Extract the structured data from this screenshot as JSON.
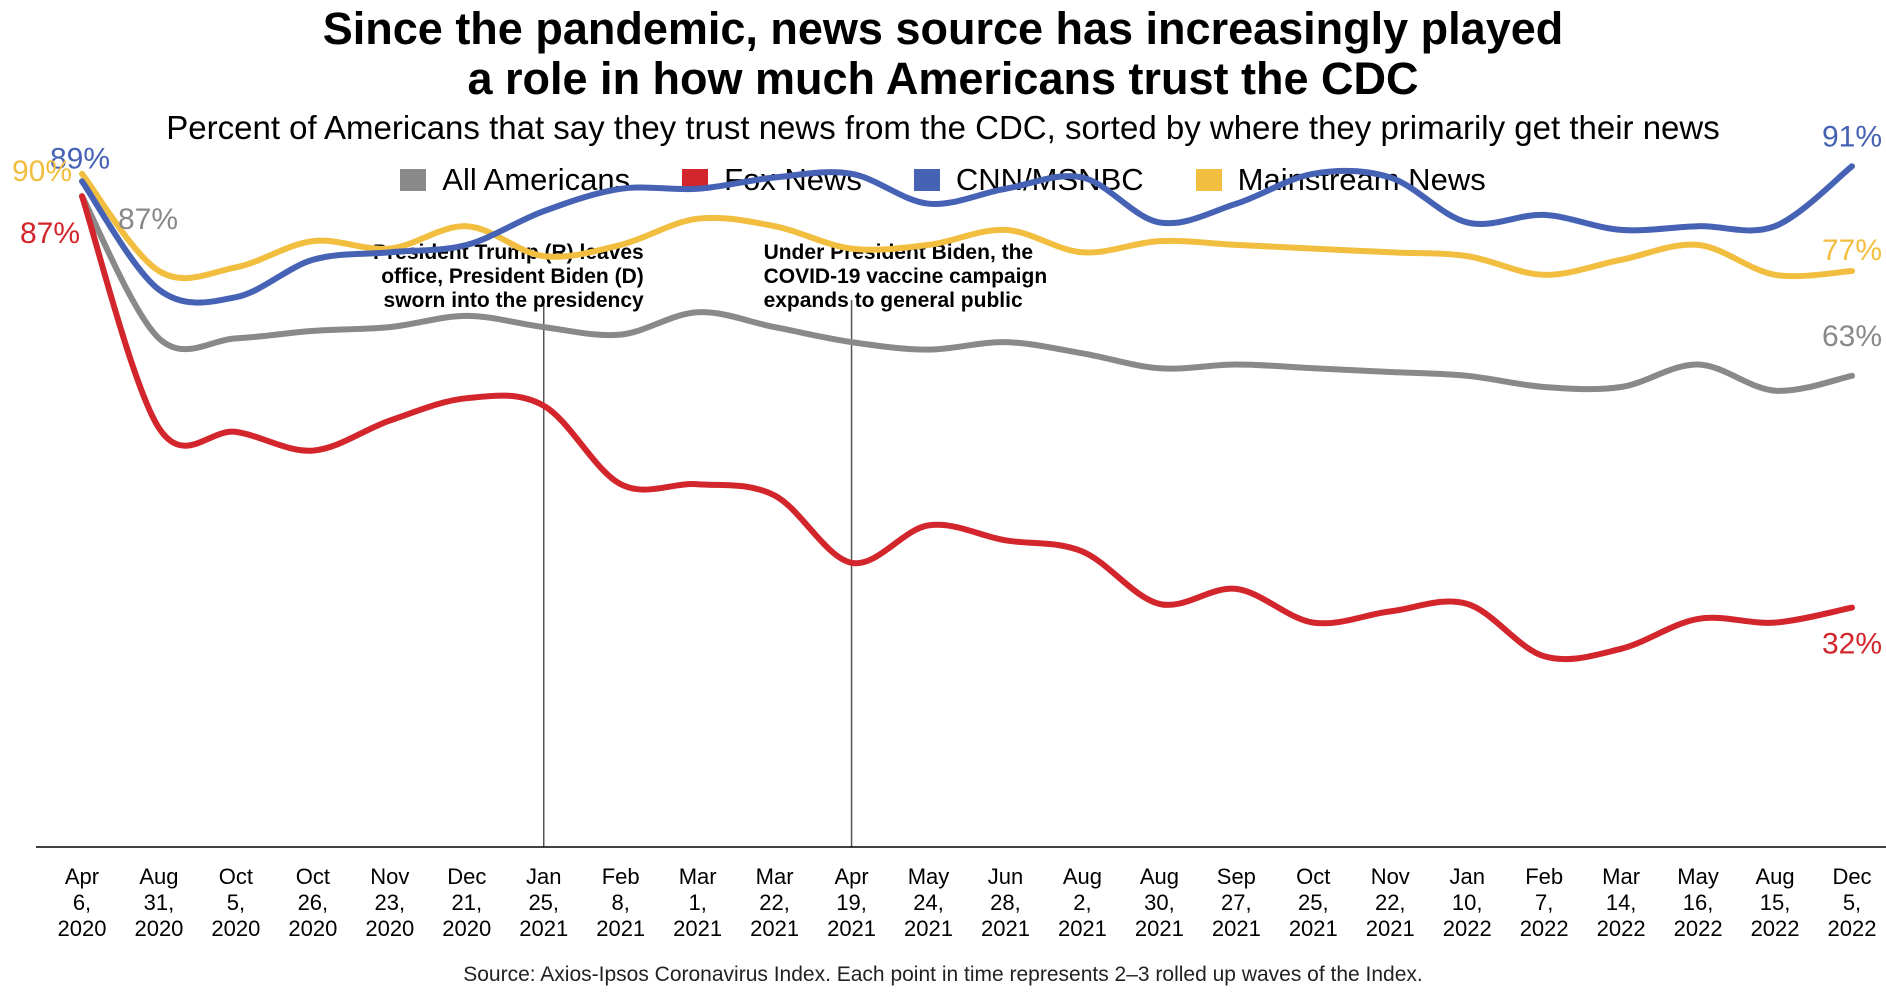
{
  "title_line1": "Since the pandemic, news source has increasingly played",
  "title_line2": "a role in how much Americans trust the CDC",
  "subtitle": "Percent of Americans that say they trust news from the CDC, sorted by where they primarily get their news",
  "source": "Source: Axios-Ipsos Coronavirus Index. Each point in time represents 2–3 rolled up waves of the Index.",
  "legend": [
    {
      "label": "All Americans",
      "color": "#898989"
    },
    {
      "label": "Fox News",
      "color": "#d3262c"
    },
    {
      "label": "CNN/MSNBC",
      "color": "#4662b5"
    },
    {
      "label": "Mainstream News",
      "color": "#f2be40"
    }
  ],
  "annotations": [
    {
      "at_index": 6,
      "text": [
        "President Trump (R) leaves",
        "office, President Biden (D)",
        "sworn into the presidency"
      ],
      "align": "right"
    },
    {
      "at_index": 10,
      "text": [
        "Under President Biden, the",
        "COVID-19 vaccine campaign",
        "expands to general public"
      ],
      "align": "left"
    }
  ],
  "chart_data": {
    "type": "line",
    "title": "Since the pandemic, news source has increasingly played a role in how much Americans trust the CDC",
    "subtitle": "Percent of Americans that say they trust news from the CDC, sorted by where they primarily get their news",
    "xlabel": "",
    "ylabel": "",
    "ylim": [
      0,
      100
    ],
    "grid": false,
    "legend_position": "top-center",
    "categories": [
      [
        "Apr",
        "6,",
        "2020"
      ],
      [
        "Aug",
        "31,",
        "2020"
      ],
      [
        "Oct",
        "5,",
        "2020"
      ],
      [
        "Oct",
        "26,",
        "2020"
      ],
      [
        "Nov",
        "23,",
        "2020"
      ],
      [
        "Dec",
        "21,",
        "2020"
      ],
      [
        "Jan",
        "25,",
        "2021"
      ],
      [
        "Feb",
        "8,",
        "2021"
      ],
      [
        "Mar",
        "1,",
        "2021"
      ],
      [
        "Mar",
        "22,",
        "2021"
      ],
      [
        "Apr",
        "19,",
        "2021"
      ],
      [
        "May",
        "24,",
        "2021"
      ],
      [
        "Jun",
        "28,",
        "2021"
      ],
      [
        "Aug",
        "2,",
        "2021"
      ],
      [
        "Aug",
        "30,",
        "2021"
      ],
      [
        "Sep",
        "27,",
        "2021"
      ],
      [
        "Oct",
        "25,",
        "2021"
      ],
      [
        "Nov",
        "22,",
        "2021"
      ],
      [
        "Jan",
        "10,",
        "2022"
      ],
      [
        "Feb",
        "7,",
        "2022"
      ],
      [
        "Mar",
        "14,",
        "2022"
      ],
      [
        "May",
        "16,",
        "2022"
      ],
      [
        "Aug",
        "15,",
        "2022"
      ],
      [
        "Dec",
        "5,",
        "2022"
      ]
    ],
    "series": [
      {
        "name": "All Americans",
        "color": "#898989",
        "values": [
          87,
          68,
          68,
          69,
          69.5,
          71,
          69.5,
          68.5,
          71.5,
          69.5,
          67.5,
          66.5,
          67.5,
          66,
          64,
          64.5,
          64,
          63.5,
          63,
          61.5,
          61.5,
          64.5,
          61,
          63
        ],
        "labels": [
          {
            "index": 0,
            "text": "87%"
          },
          {
            "index": 23,
            "text": "63%"
          }
        ]
      },
      {
        "name": "Fox News",
        "color": "#d3262c",
        "values": [
          87,
          56,
          55.5,
          53,
          57,
          60,
          59,
          48.5,
          48.5,
          47,
          38,
          43,
          41,
          39.5,
          32.5,
          34.5,
          30,
          31.5,
          32.5,
          25.5,
          26.5,
          30.5,
          30,
          32
        ],
        "labels": [
          {
            "index": 0,
            "text": "87%"
          },
          {
            "index": 23,
            "text": "32%"
          }
        ]
      },
      {
        "name": "CNN/MSNBC",
        "color": "#4662b5",
        "values": [
          89,
          74.5,
          73.5,
          78.5,
          79.5,
          80.5,
          85,
          88,
          88,
          89.5,
          90,
          86,
          88,
          89.5,
          83.5,
          86,
          90,
          89.5,
          83.5,
          84.5,
          82.5,
          83,
          83,
          91
        ],
        "labels": [
          {
            "index": 0,
            "text": "89%"
          },
          {
            "index": 23,
            "text": "91%"
          }
        ]
      },
      {
        "name": "Mainstream News",
        "color": "#f2be40",
        "values": [
          90,
          77,
          77.5,
          81,
          80,
          83,
          79,
          80.5,
          84,
          83,
          80,
          80.5,
          82.5,
          79.5,
          81,
          80.5,
          80,
          79.5,
          79,
          76.5,
          78.5,
          80.5,
          76.5,
          77
        ],
        "labels": [
          {
            "index": 0,
            "text": "90%"
          },
          {
            "index": 23,
            "text": "77%"
          }
        ]
      }
    ]
  }
}
